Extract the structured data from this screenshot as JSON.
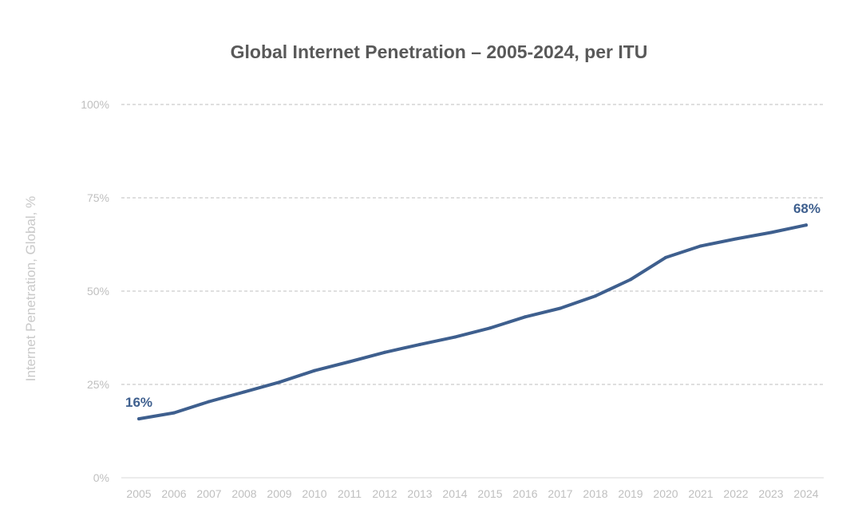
{
  "chart_data": {
    "type": "line",
    "title": "Global Internet Penetration – 2005-2024, per ITU",
    "xlabel": "",
    "ylabel": "Internet Penetration, Global, %",
    "ylim": [
      0,
      100
    ],
    "yticks": [
      0,
      25,
      50,
      75,
      100
    ],
    "ytick_labels": [
      "0%",
      "25%",
      "50%",
      "75%",
      "100%"
    ],
    "grid": true,
    "line_color": "#3e5f8e",
    "categories": [
      "2005",
      "2006",
      "2007",
      "2008",
      "2009",
      "2010",
      "2011",
      "2012",
      "2013",
      "2014",
      "2015",
      "2016",
      "2017",
      "2018",
      "2019",
      "2020",
      "2021",
      "2022",
      "2023",
      "2024"
    ],
    "series": [
      {
        "name": "Internet Penetration, Global",
        "values": [
          15.8,
          17.4,
          20.4,
          23.0,
          25.6,
          28.7,
          31.1,
          33.6,
          35.7,
          37.7,
          40.1,
          43.1,
          45.4,
          48.7,
          53.1,
          59.0,
          62.1,
          64.0,
          65.7,
          67.7
        ]
      }
    ],
    "annotations": [
      {
        "category": "2005",
        "text": "16%"
      },
      {
        "category": "2024",
        "text": "68%"
      }
    ]
  }
}
